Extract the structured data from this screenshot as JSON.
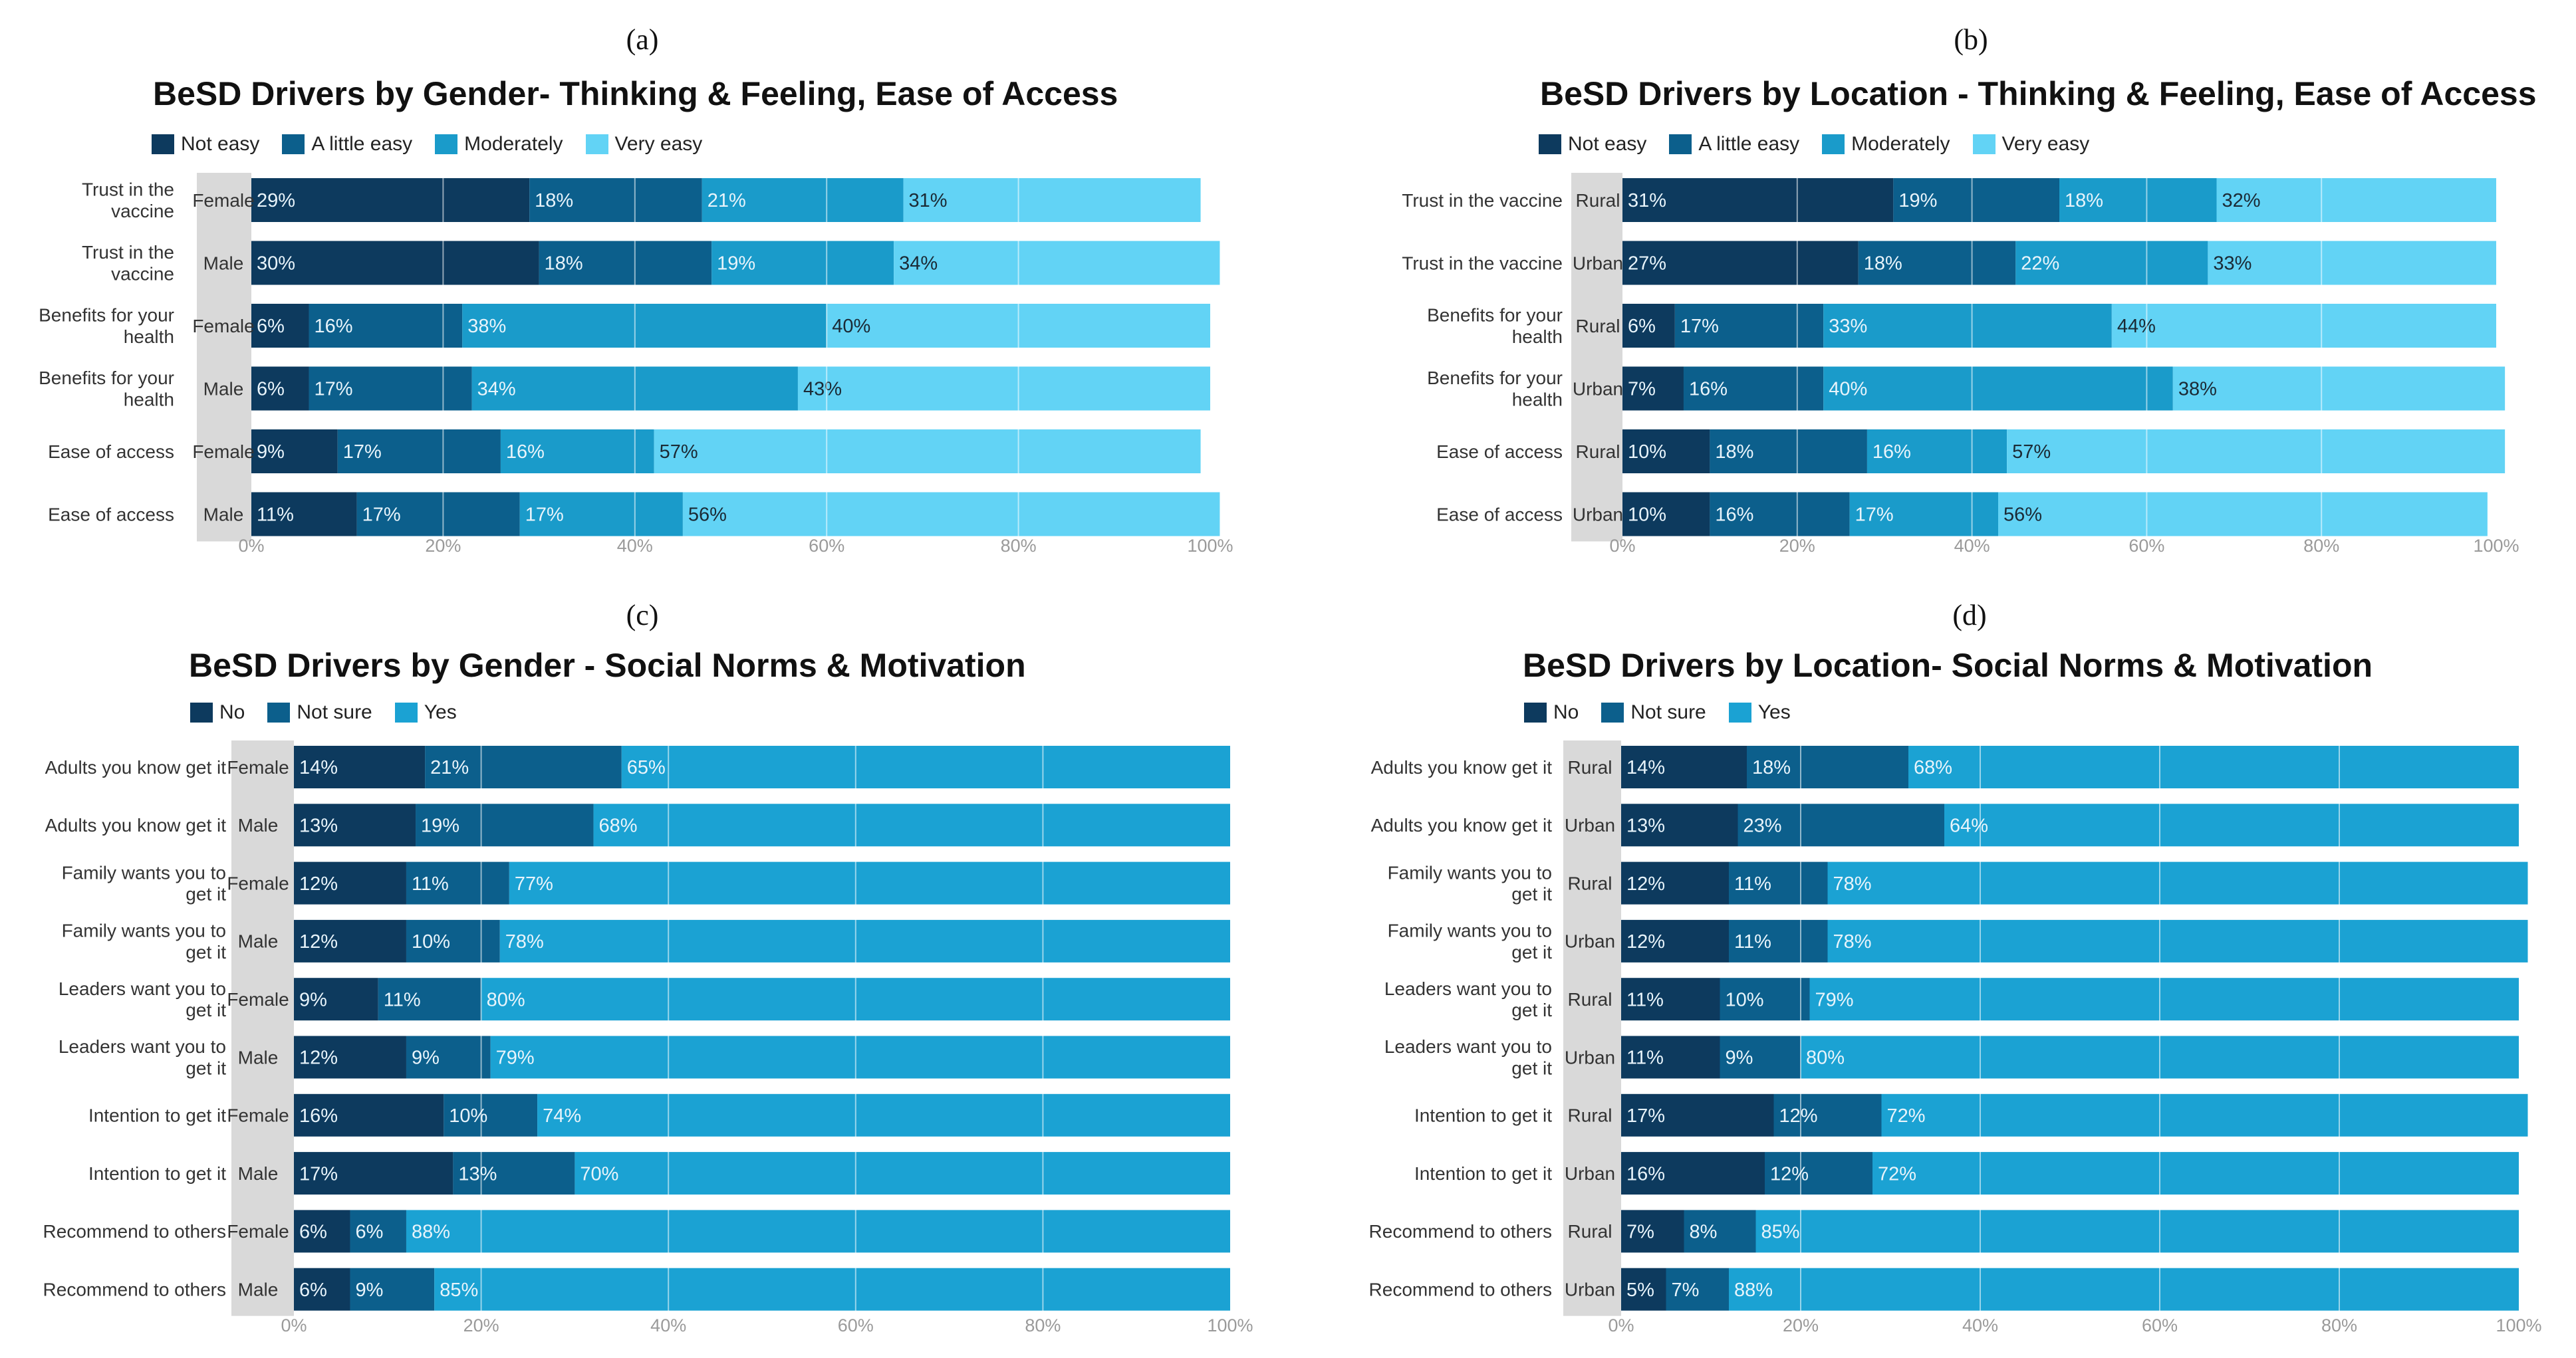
{
  "colors": {
    "not_easy": "#0d3a5e",
    "little_easy": "#0c5f8c",
    "moderately": "#1a9bca",
    "very_easy": "#62d3f5",
    "no": "#0d3a5e",
    "not_sure": "#0c5f8c",
    "yes": "#1ba2d3",
    "group_band": "#d9d9d9"
  },
  "chart_data": [
    {
      "type": "bar",
      "orientation": "horizontal-stacked-100",
      "panel": "(a)",
      "title": "BeSD Drivers by Gender- Thinking & Feeling, Ease of Access",
      "legend": [
        "Not easy",
        "A little easy",
        "Moderately",
        "Very easy"
      ],
      "legend_keys": [
        "not_easy",
        "little_easy",
        "moderately",
        "very_easy"
      ],
      "categories": [
        {
          "label": [
            "Trust in the",
            "vaccine"
          ],
          "group": "Female"
        },
        {
          "label": [
            "Trust in the",
            "vaccine"
          ],
          "group": "Male"
        },
        {
          "label": [
            "Benefits for your",
            "health"
          ],
          "group": "Female"
        },
        {
          "label": [
            "Benefits for your",
            "health"
          ],
          "group": "Male"
        },
        {
          "label": [
            "Ease of access"
          ],
          "group": "Female"
        },
        {
          "label": [
            "Ease of access"
          ],
          "group": "Male"
        }
      ],
      "series": [
        {
          "name": "Not easy",
          "values": [
            29,
            30,
            6,
            6,
            9,
            11
          ]
        },
        {
          "name": "A little easy",
          "values": [
            18,
            18,
            16,
            17,
            17,
            17
          ]
        },
        {
          "name": "Moderately",
          "values": [
            21,
            19,
            38,
            34,
            16,
            17
          ]
        },
        {
          "name": "Very easy",
          "values": [
            31,
            34,
            40,
            43,
            57,
            56
          ]
        }
      ],
      "xlim": [
        0,
        100
      ],
      "xticks": [
        "0%",
        "20%",
        "40%",
        "60%",
        "80%",
        "100%"
      ]
    },
    {
      "type": "bar",
      "orientation": "horizontal-stacked-100",
      "panel": "(b)",
      "title": "BeSD Drivers by Location - Thinking & Feeling, Ease of Access",
      "legend": [
        "Not easy",
        "A little easy",
        "Moderately",
        "Very easy"
      ],
      "legend_keys": [
        "not_easy",
        "little_easy",
        "moderately",
        "very_easy"
      ],
      "categories": [
        {
          "label": [
            "Trust in the vaccine"
          ],
          "group": "Rural"
        },
        {
          "label": [
            "Trust in the vaccine"
          ],
          "group": "Urban"
        },
        {
          "label": [
            "Benefits for your",
            "health"
          ],
          "group": "Rural"
        },
        {
          "label": [
            "Benefits for your",
            "health"
          ],
          "group": "Urban"
        },
        {
          "label": [
            "Ease of access"
          ],
          "group": "Rural"
        },
        {
          "label": [
            "Ease of access"
          ],
          "group": "Urban"
        }
      ],
      "series": [
        {
          "name": "Not easy",
          "values": [
            31,
            27,
            6,
            7,
            10,
            10
          ]
        },
        {
          "name": "A little easy",
          "values": [
            19,
            18,
            17,
            16,
            18,
            16
          ]
        },
        {
          "name": "Moderately",
          "values": [
            18,
            22,
            33,
            40,
            16,
            17
          ]
        },
        {
          "name": "Very easy",
          "values": [
            32,
            33,
            44,
            38,
            57,
            56
          ]
        }
      ],
      "xlim": [
        0,
        100
      ],
      "xticks": [
        "0%",
        "20%",
        "40%",
        "60%",
        "80%",
        "100%"
      ]
    },
    {
      "type": "bar",
      "orientation": "horizontal-stacked-100",
      "panel": "(c)",
      "title": "BeSD Drivers by Gender - Social Norms & Motivation",
      "legend": [
        "No",
        "Not sure",
        "Yes"
      ],
      "legend_keys": [
        "no",
        "not_sure",
        "yes"
      ],
      "categories": [
        {
          "label": [
            "Adults you know get it"
          ],
          "group": "Female"
        },
        {
          "label": [
            "Adults you know get it"
          ],
          "group": "Male"
        },
        {
          "label": [
            "Family wants you to",
            "get it"
          ],
          "group": "Female"
        },
        {
          "label": [
            "Family wants you to",
            "get it"
          ],
          "group": "Male"
        },
        {
          "label": [
            "Leaders want you to",
            "get it"
          ],
          "group": "Female"
        },
        {
          "label": [
            "Leaders want you to",
            "get it"
          ],
          "group": "Male"
        },
        {
          "label": [
            "Intention to get it"
          ],
          "group": "Female"
        },
        {
          "label": [
            "Intention to get it"
          ],
          "group": "Male"
        },
        {
          "label": [
            "Recommend to others"
          ],
          "group": "Female"
        },
        {
          "label": [
            "Recommend to others"
          ],
          "group": "Male"
        }
      ],
      "series": [
        {
          "name": "No",
          "values": [
            14,
            13,
            12,
            12,
            9,
            12,
            16,
            17,
            6,
            6
          ]
        },
        {
          "name": "Not sure",
          "values": [
            21,
            19,
            11,
            10,
            11,
            9,
            10,
            13,
            6,
            9
          ]
        },
        {
          "name": "Yes",
          "values": [
            65,
            68,
            77,
            78,
            80,
            79,
            74,
            70,
            88,
            85
          ]
        }
      ],
      "xlim": [
        0,
        100
      ],
      "xticks": [
        "0%",
        "20%",
        "40%",
        "60%",
        "80%",
        "100%"
      ]
    },
    {
      "type": "bar",
      "orientation": "horizontal-stacked-100",
      "panel": "(d)",
      "title": "BeSD Drivers by Location- Social Norms & Motivation",
      "legend": [
        "No",
        "Not sure",
        "Yes"
      ],
      "legend_keys": [
        "no",
        "not_sure",
        "yes"
      ],
      "categories": [
        {
          "label": [
            "Adults you know get it"
          ],
          "group": "Rural"
        },
        {
          "label": [
            "Adults you know get it"
          ],
          "group": "Urban"
        },
        {
          "label": [
            "Family wants you to",
            "get it"
          ],
          "group": "Rural"
        },
        {
          "label": [
            "Family wants you to",
            "get it"
          ],
          "group": "Urban"
        },
        {
          "label": [
            "Leaders want you to",
            "get it"
          ],
          "group": "Rural"
        },
        {
          "label": [
            "Leaders want you to",
            "get it"
          ],
          "group": "Urban"
        },
        {
          "label": [
            "Intention to get it"
          ],
          "group": "Rural"
        },
        {
          "label": [
            "Intention to get it"
          ],
          "group": "Urban"
        },
        {
          "label": [
            "Recommend to others"
          ],
          "group": "Rural"
        },
        {
          "label": [
            "Recommend to others"
          ],
          "group": "Urban"
        }
      ],
      "series": [
        {
          "name": "No",
          "values": [
            14,
            13,
            12,
            12,
            11,
            11,
            17,
            16,
            7,
            5
          ]
        },
        {
          "name": "Not sure",
          "values": [
            18,
            23,
            11,
            11,
            10,
            9,
            12,
            12,
            8,
            7
          ]
        },
        {
          "name": "Yes",
          "values": [
            68,
            64,
            78,
            78,
            79,
            80,
            72,
            72,
            85,
            88
          ]
        }
      ],
      "xlim": [
        0,
        100
      ],
      "xticks": [
        "0%",
        "20%",
        "40%",
        "60%",
        "80%",
        "100%"
      ]
    }
  ]
}
